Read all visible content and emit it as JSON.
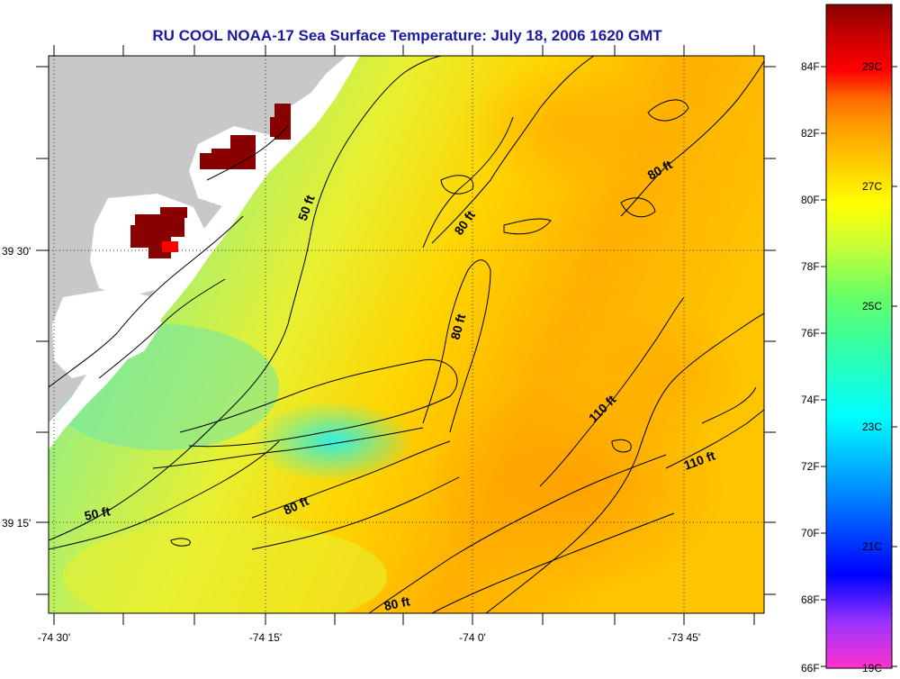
{
  "title": "RU COOL  NOAA-17  Sea Surface Temperature:  July 18, 2006 1620 GMT",
  "lat_labels": [
    "39 30'",
    "39 15'"
  ],
  "lon_labels": [
    "-74 30'",
    "-74 15'",
    "-74 0'",
    "-73 45'"
  ],
  "contour_labels": [
    "50 ft",
    "50 ft",
    "80 ft",
    "80 ft",
    "80 ft",
    "80 ft",
    "80 ft",
    "110 ft",
    "110 ft"
  ],
  "colorbar": {
    "fahrenheit": [
      "84F",
      "82F",
      "80F",
      "78F",
      "76F",
      "74F",
      "72F",
      "70F",
      "68F",
      "66F"
    ],
    "celsius": [
      "29C",
      "27C",
      "25C",
      "23C",
      "21C",
      "19C"
    ],
    "colors": [
      "#ff33cc",
      "#9933ff",
      "#0000ff",
      "#0099ff",
      "#00ffff",
      "#33ffaa",
      "#66ff66",
      "#ccff33",
      "#ffff00",
      "#ffcc00",
      "#ff9900",
      "#ff6600",
      "#ff0000",
      "#cc0000",
      "#880000"
    ]
  },
  "colors": {
    "land": "#c8c8c8",
    "cloud": "#ffffff",
    "title": "#1a1aa0"
  }
}
